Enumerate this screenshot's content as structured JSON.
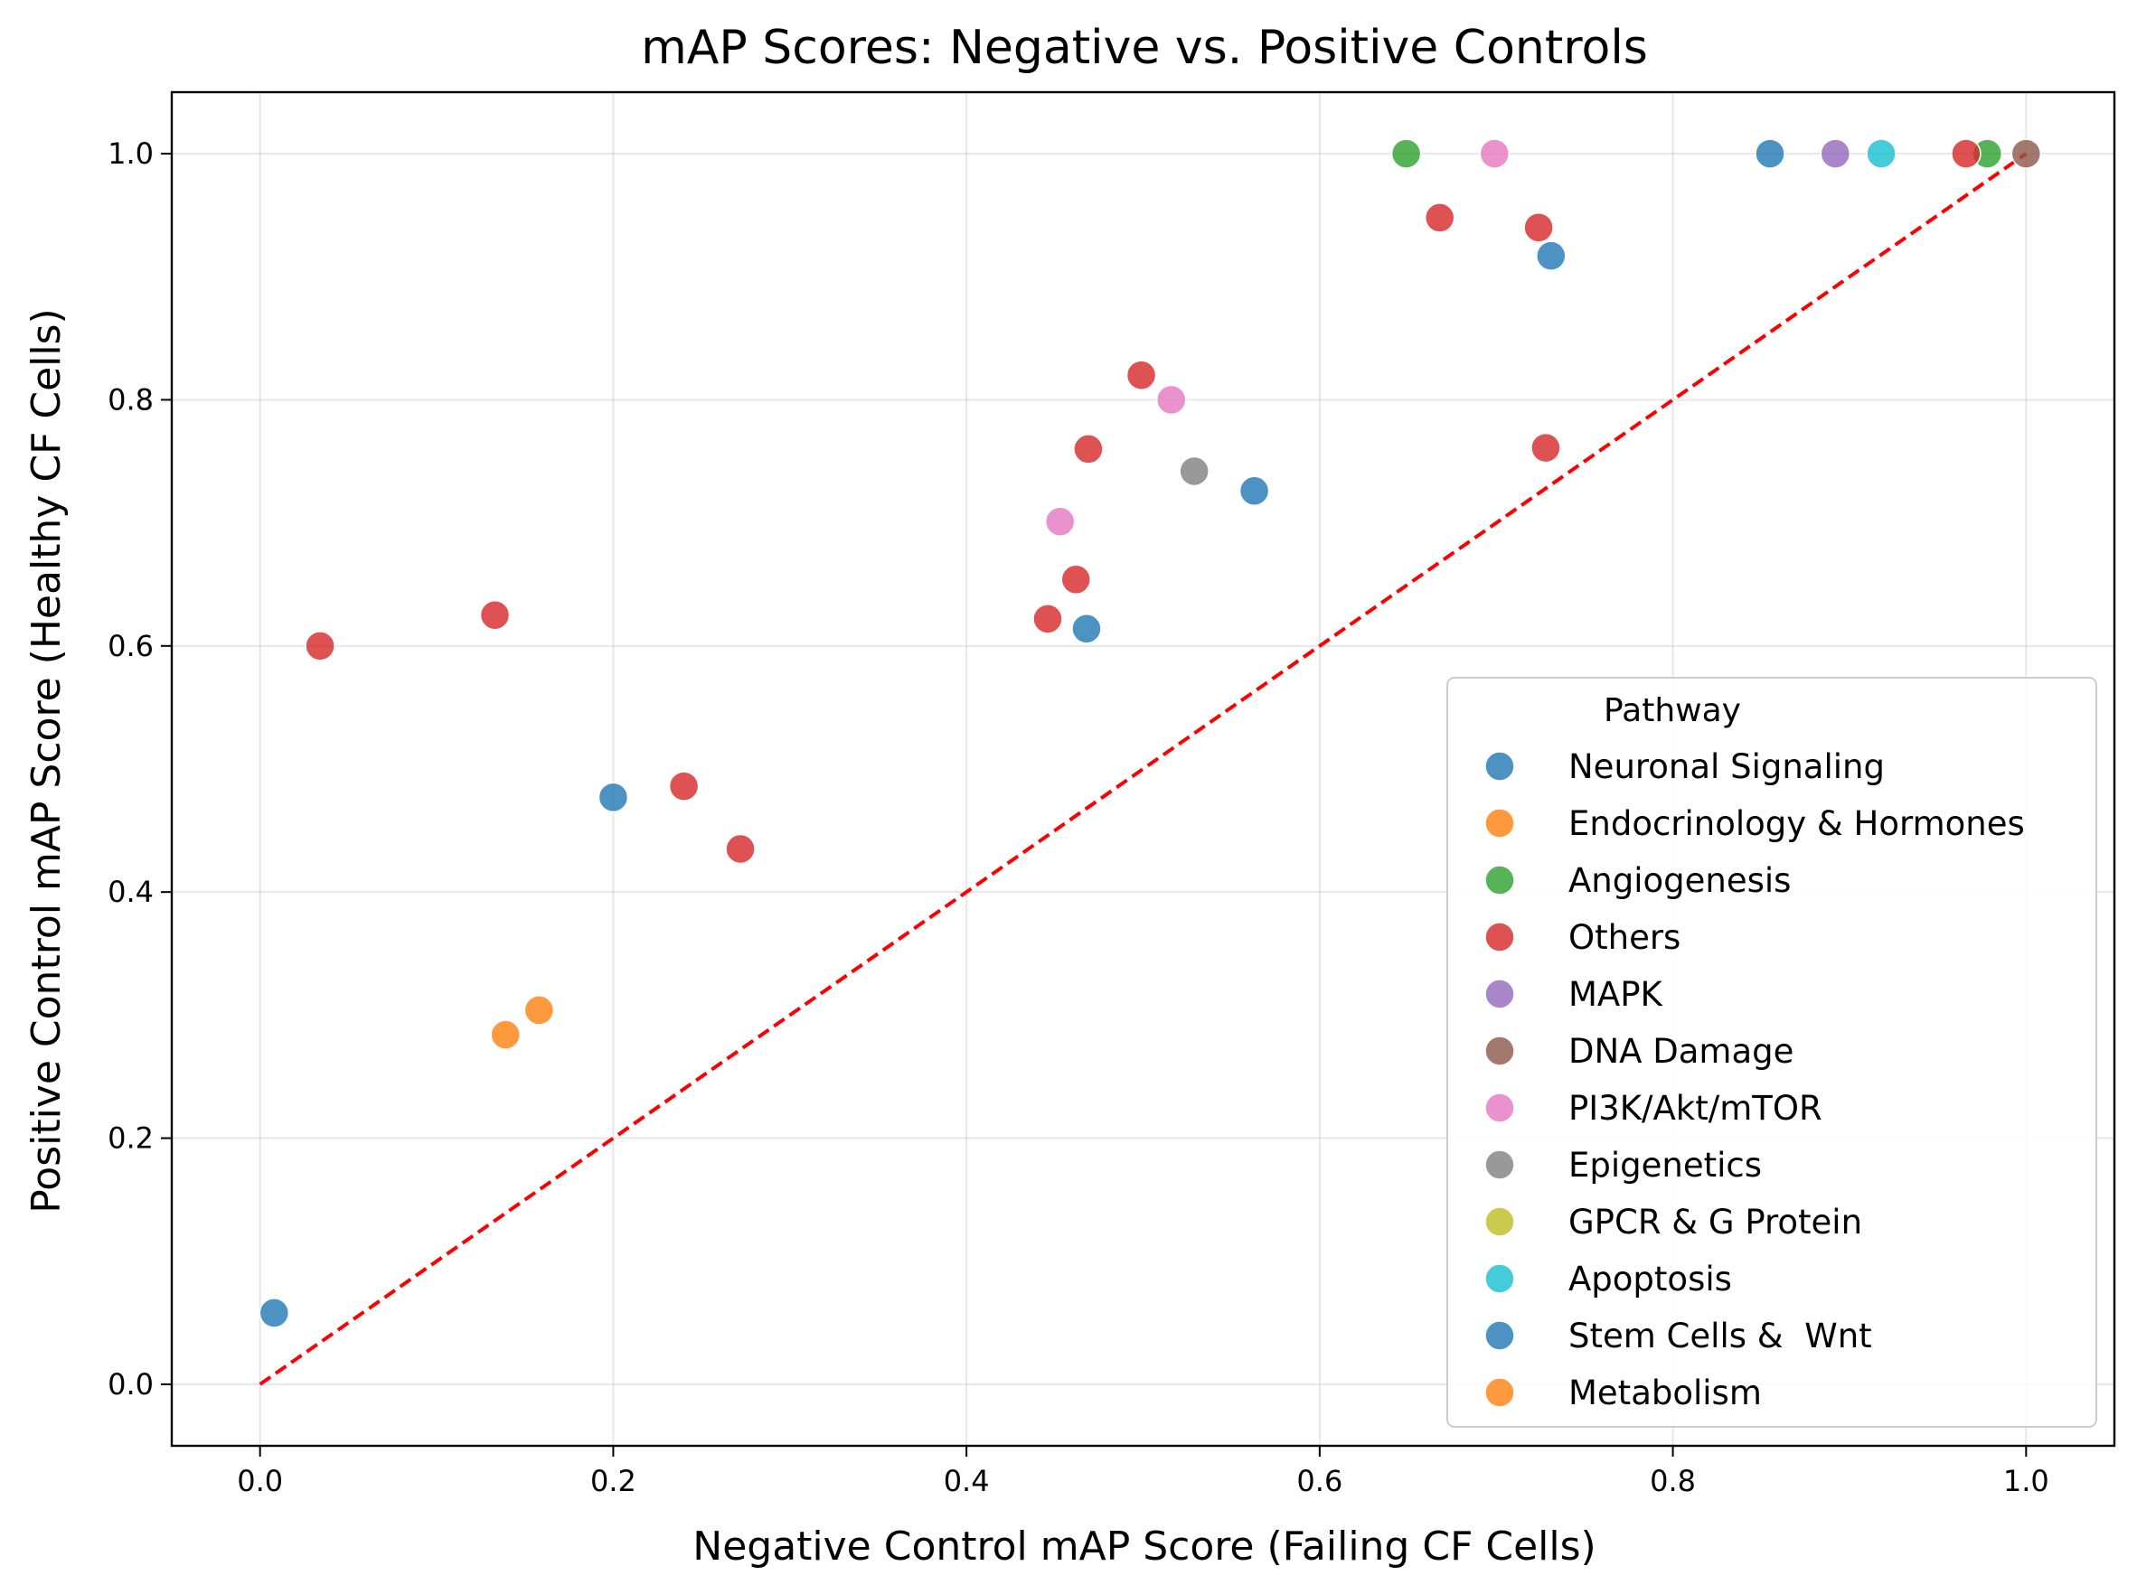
{
  "chart_data": {
    "type": "scatter",
    "title": "mAP Scores: Negative vs. Positive Controls",
    "xlabel": "Negative Control mAP Score (Failing CF Cells)",
    "ylabel": "Positive Control mAP Score (Healthy CF Cells)",
    "xlim": [
      -0.05,
      1.05
    ],
    "ylim": [
      -0.05,
      1.05
    ],
    "xticks": [
      "0.0",
      "0.2",
      "0.4",
      "0.6",
      "0.8",
      "1.0"
    ],
    "yticks": [
      "0.0",
      "0.2",
      "0.4",
      "0.6",
      "0.8",
      "1.0"
    ],
    "grid": true,
    "reference_line": {
      "style": "dashed",
      "color": "#ff0000",
      "from": [
        0,
        0
      ],
      "to": [
        1,
        1
      ]
    },
    "legend": {
      "title": "Pathway",
      "placement": "lower-right"
    },
    "series": [
      {
        "name": "Neuronal Signaling",
        "color": "#1f77b4",
        "points": [
          [
            0.855,
            1.0
          ],
          [
            0.731,
            0.917
          ],
          [
            0.563,
            0.726
          ],
          [
            0.468,
            0.614
          ],
          [
            0.2,
            0.477
          ],
          [
            0.008,
            0.058
          ]
        ]
      },
      {
        "name": "Endocrinology & Hormones",
        "color": "#ff7f0e",
        "points": [
          [
            0.139,
            0.284
          ],
          [
            0.158,
            0.304
          ]
        ]
      },
      {
        "name": "Angiogenesis",
        "color": "#2ca02c",
        "points": [
          [
            0.649,
            1.0
          ],
          [
            0.978,
            1.0
          ]
        ]
      },
      {
        "name": "Others",
        "color": "#d62728",
        "points": [
          [
            0.966,
            1.0
          ],
          [
            0.668,
            0.948
          ],
          [
            0.724,
            0.94
          ],
          [
            0.499,
            0.82
          ],
          [
            0.469,
            0.76
          ],
          [
            0.728,
            0.761
          ],
          [
            0.462,
            0.654
          ],
          [
            0.446,
            0.622
          ],
          [
            0.133,
            0.625
          ],
          [
            0.034,
            0.6
          ],
          [
            0.24,
            0.486
          ],
          [
            0.272,
            0.435
          ]
        ]
      },
      {
        "name": "MAPK",
        "color": "#9467bd",
        "points": [
          [
            0.892,
            1.0
          ]
        ]
      },
      {
        "name": "DNA Damage",
        "color": "#8c564b",
        "points": [
          [
            1.0,
            1.0
          ]
        ]
      },
      {
        "name": "PI3K/Akt/mTOR",
        "color": "#e377c2",
        "points": [
          [
            0.699,
            1.0
          ],
          [
            0.516,
            0.8
          ],
          [
            0.453,
            0.701
          ]
        ]
      },
      {
        "name": "Epigenetics",
        "color": "#7f7f7f",
        "points": [
          [
            0.529,
            0.742
          ]
        ]
      },
      {
        "name": "GPCR & G Protein",
        "color": "#bcbd22",
        "points": []
      },
      {
        "name": "Apoptosis",
        "color": "#17becf",
        "points": [
          [
            0.918,
            1.0
          ]
        ]
      },
      {
        "name": "Stem Cells &  Wnt",
        "color": "#1f77b4",
        "points": []
      },
      {
        "name": "Metabolism",
        "color": "#ff7f0e",
        "points": []
      }
    ]
  }
}
